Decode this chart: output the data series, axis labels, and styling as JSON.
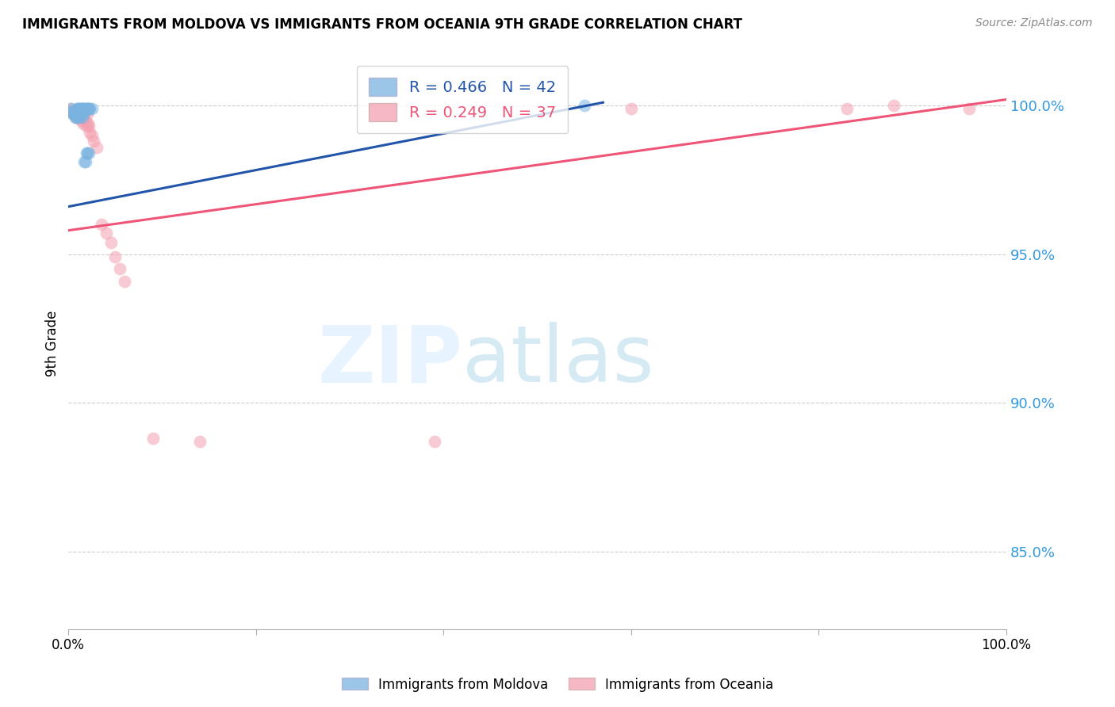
{
  "title": "IMMIGRANTS FROM MOLDOVA VS IMMIGRANTS FROM OCEANIA 9TH GRADE CORRELATION CHART",
  "source": "Source: ZipAtlas.com",
  "ylabel": "9th Grade",
  "y_ticks": [
    0.85,
    0.9,
    0.95,
    1.0
  ],
  "y_tick_labels": [
    "85.0%",
    "90.0%",
    "95.0%",
    "100.0%"
  ],
  "xlim": [
    0.0,
    1.0
  ],
  "ylim": [
    0.824,
    1.016
  ],
  "blue_R": 0.466,
  "blue_N": 42,
  "pink_R": 0.249,
  "pink_N": 37,
  "blue_color": "#7AB3E0",
  "pink_color": "#F4A0B0",
  "blue_line_color": "#2255AA",
  "pink_line_color": "#EE5577",
  "blue_points_x": [
    0.002,
    0.003,
    0.004,
    0.005,
    0.006,
    0.007,
    0.007,
    0.008,
    0.008,
    0.009,
    0.009,
    0.01,
    0.01,
    0.01,
    0.011,
    0.011,
    0.012,
    0.012,
    0.012,
    0.013,
    0.013,
    0.014,
    0.014,
    0.015,
    0.015,
    0.015,
    0.016,
    0.016,
    0.017,
    0.017,
    0.018,
    0.018,
    0.019,
    0.019,
    0.02,
    0.02,
    0.021,
    0.022,
    0.022,
    0.023,
    0.025,
    0.55
  ],
  "blue_points_y": [
    0.999,
    0.998,
    0.998,
    0.997,
    0.997,
    0.997,
    0.996,
    0.998,
    0.996,
    0.999,
    0.997,
    0.999,
    0.998,
    0.996,
    0.999,
    0.997,
    0.999,
    0.998,
    0.996,
    0.999,
    0.997,
    0.999,
    0.998,
    0.999,
    0.998,
    0.996,
    0.999,
    0.997,
    0.999,
    0.981,
    0.999,
    0.981,
    0.999,
    0.984,
    0.999,
    0.984,
    0.999,
    0.999,
    0.984,
    0.999,
    0.999,
    1.0
  ],
  "pink_points_x": [
    0.003,
    0.004,
    0.005,
    0.006,
    0.007,
    0.008,
    0.009,
    0.01,
    0.011,
    0.012,
    0.013,
    0.014,
    0.015,
    0.016,
    0.017,
    0.018,
    0.019,
    0.02,
    0.021,
    0.022,
    0.023,
    0.025,
    0.027,
    0.03,
    0.035,
    0.04,
    0.045,
    0.05,
    0.055,
    0.06,
    0.09,
    0.14,
    0.39,
    0.6,
    0.83,
    0.88,
    0.96
  ],
  "pink_points_y": [
    0.999,
    0.998,
    0.998,
    0.997,
    0.997,
    0.996,
    0.998,
    0.997,
    0.996,
    0.997,
    0.995,
    0.997,
    0.996,
    0.994,
    0.996,
    0.995,
    0.993,
    0.997,
    0.994,
    0.993,
    0.991,
    0.99,
    0.988,
    0.986,
    0.96,
    0.957,
    0.954,
    0.949,
    0.945,
    0.941,
    0.888,
    0.887,
    0.887,
    0.999,
    0.999,
    1.0,
    0.999
  ],
  "blue_line_x": [
    0.0,
    0.57
  ],
  "blue_line_y": [
    0.966,
    1.001
  ],
  "pink_line_x": [
    0.0,
    1.0
  ],
  "pink_line_y": [
    0.958,
    1.002
  ]
}
